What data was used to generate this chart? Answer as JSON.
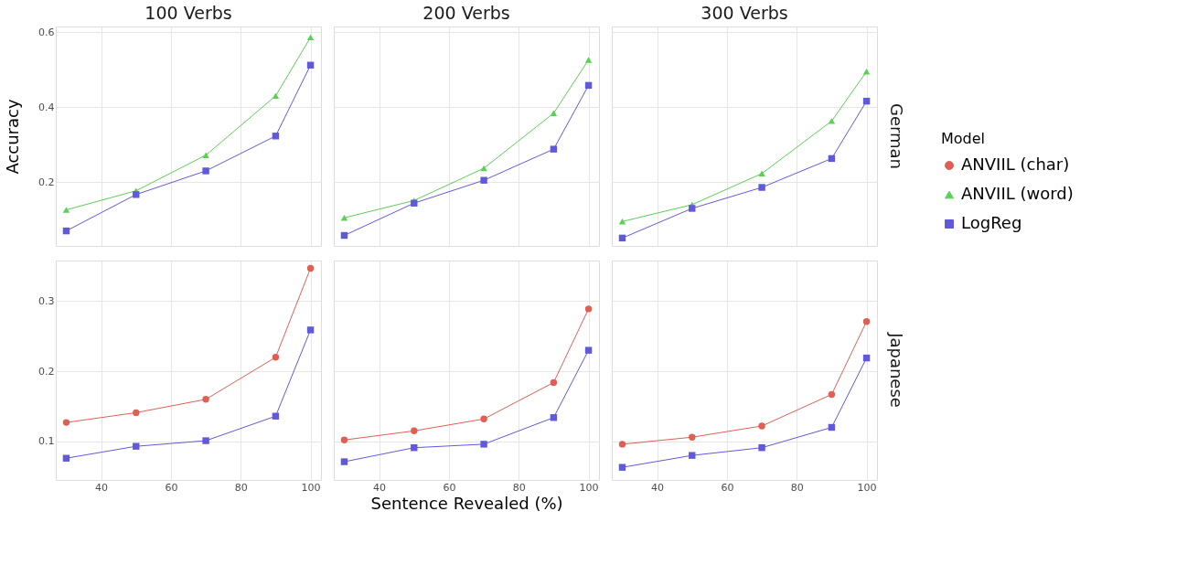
{
  "chart_data": [
    {
      "type": "line",
      "title": "100 Verbs",
      "ylabel": "Accuracy",
      "legend": "right",
      "legend_title": "Model",
      "x": [
        30,
        50,
        70,
        90,
        100
      ],
      "xlim": [
        27,
        103
      ],
      "xticks": [
        40,
        60,
        80,
        100
      ],
      "ylim": [
        0.03,
        0.615
      ],
      "yticks": [
        0.2,
        0.4,
        0.6
      ],
      "grid": true,
      "tick_labels": "y",
      "series": [
        {
          "name": "ANVIIL (word)",
          "color": "#5ccf55",
          "marker": "triangle",
          "values": [
            0.126,
            0.177,
            0.272,
            0.43,
            0.586
          ]
        },
        {
          "name": "LogReg",
          "color": "#6159dc",
          "marker": "square",
          "values": [
            0.07,
            0.167,
            0.23,
            0.323,
            0.512
          ]
        }
      ]
    },
    {
      "type": "line",
      "title": "200 Verbs",
      "x": [
        30,
        50,
        70,
        90,
        100
      ],
      "xlim": [
        27,
        103
      ],
      "xticks": [
        40,
        60,
        80,
        100
      ],
      "ylim": [
        0.03,
        0.615
      ],
      "yticks": [
        0.2,
        0.4,
        0.6
      ],
      "grid": true,
      "tick_labels": false,
      "series": [
        {
          "name": "ANVIIL (word)",
          "color": "#5ccf55",
          "marker": "triangle",
          "values": [
            0.105,
            0.151,
            0.237,
            0.384,
            0.526
          ]
        },
        {
          "name": "LogReg",
          "color": "#6159dc",
          "marker": "square",
          "values": [
            0.058,
            0.144,
            0.205,
            0.288,
            0.458
          ]
        }
      ]
    },
    {
      "type": "line",
      "title": "300 Verbs",
      "annotations": [
        "German"
      ],
      "x": [
        30,
        50,
        70,
        90,
        100
      ],
      "xlim": [
        27,
        103
      ],
      "xticks": [
        40,
        60,
        80,
        100
      ],
      "ylim": [
        0.03,
        0.615
      ],
      "yticks": [
        0.2,
        0.4,
        0.6
      ],
      "grid": true,
      "tick_labels": false,
      "series": [
        {
          "name": "ANVIIL (word)",
          "color": "#5ccf55",
          "marker": "triangle",
          "values": [
            0.095,
            0.14,
            0.223,
            0.363,
            0.495
          ]
        },
        {
          "name": "LogReg",
          "color": "#6159dc",
          "marker": "square",
          "values": [
            0.051,
            0.13,
            0.186,
            0.263,
            0.416
          ]
        }
      ]
    },
    {
      "type": "line",
      "x": [
        30,
        50,
        70,
        90,
        100
      ],
      "xlim": [
        27,
        103
      ],
      "xticks": [
        40,
        60,
        80,
        100
      ],
      "ylim": [
        0.045,
        0.358
      ],
      "yticks": [
        0.1,
        0.2,
        0.3
      ],
      "grid": true,
      "series": [
        {
          "name": "ANVIIL (char)",
          "color": "#e05f55",
          "marker": "circle",
          "values": [
            0.127,
            0.141,
            0.16,
            0.22,
            0.347
          ]
        },
        {
          "name": "LogReg",
          "color": "#6159dc",
          "marker": "square",
          "values": [
            0.076,
            0.093,
            0.101,
            0.136,
            0.259
          ]
        }
      ]
    },
    {
      "type": "line",
      "xlabel": "Sentence Revealed (%)",
      "x": [
        30,
        50,
        70,
        90,
        100
      ],
      "xlim": [
        27,
        103
      ],
      "xticks": [
        40,
        60,
        80,
        100
      ],
      "ylim": [
        0.045,
        0.358
      ],
      "yticks": [
        0.1,
        0.2,
        0.3
      ],
      "grid": true,
      "tick_labels": "x",
      "series": [
        {
          "name": "ANVIIL (char)",
          "color": "#e05f55",
          "marker": "circle",
          "values": [
            0.102,
            0.115,
            0.132,
            0.184,
            0.289
          ]
        },
        {
          "name": "LogReg",
          "color": "#6159dc",
          "marker": "square",
          "values": [
            0.071,
            0.091,
            0.096,
            0.134,
            0.23
          ]
        }
      ]
    },
    {
      "type": "line",
      "annotations": [
        "Japanese"
      ],
      "x": [
        30,
        50,
        70,
        90,
        100
      ],
      "xlim": [
        27,
        103
      ],
      "xticks": [
        40,
        60,
        80,
        100
      ],
      "ylim": [
        0.045,
        0.358
      ],
      "yticks": [
        0.1,
        0.2,
        0.3
      ],
      "grid": true,
      "tick_labels": "x",
      "series": [
        {
          "name": "ANVIIL (char)",
          "color": "#e05f55",
          "marker": "circle",
          "values": [
            0.096,
            0.106,
            0.122,
            0.167,
            0.271
          ]
        },
        {
          "name": "LogReg",
          "color": "#6159dc",
          "marker": "square",
          "values": [
            0.063,
            0.08,
            0.091,
            0.12,
            0.219
          ]
        }
      ]
    }
  ]
}
